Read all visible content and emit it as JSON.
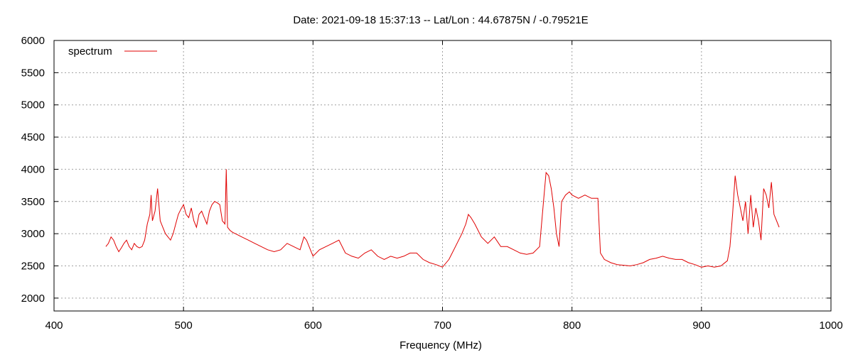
{
  "chart_data": {
    "type": "line",
    "title": "Date: 2021-09-18 15:37:13  --  Lat/Lon : 44.67875N / -0.79521E",
    "xlabel": "Frequency (MHz)",
    "ylabel": "",
    "xlim": [
      400,
      1000
    ],
    "ylim": [
      1800,
      6000
    ],
    "xticks": [
      400,
      500,
      600,
      700,
      800,
      900,
      1000
    ],
    "yticks": [
      2000,
      2500,
      3000,
      3500,
      4000,
      4500,
      5000,
      5500,
      6000
    ],
    "grid": true,
    "legend_position": "top-left",
    "series_color": "#e00000",
    "series": [
      {
        "name": "spectrum",
        "x": [
          440,
          442,
          444,
          446,
          448,
          450,
          452,
          454,
          456,
          458,
          460,
          462,
          464,
          466,
          468,
          470,
          472,
          474,
          475,
          476,
          478,
          480,
          482,
          484,
          486,
          488,
          490,
          492,
          494,
          496,
          498,
          500,
          502,
          504,
          506,
          508,
          510,
          512,
          514,
          516,
          518,
          520,
          522,
          524,
          526,
          528,
          530,
          532,
          533,
          534,
          536,
          538,
          540,
          545,
          550,
          555,
          560,
          565,
          570,
          575,
          580,
          585,
          590,
          593,
          595,
          598,
          600,
          605,
          610,
          615,
          620,
          625,
          630,
          635,
          640,
          645,
          650,
          655,
          660,
          665,
          670,
          675,
          680,
          685,
          690,
          695,
          700,
          705,
          710,
          715,
          718,
          720,
          722,
          725,
          730,
          735,
          740,
          745,
          750,
          755,
          760,
          765,
          770,
          775,
          778,
          780,
          782,
          784,
          786,
          788,
          790,
          792,
          795,
          798,
          800,
          805,
          810,
          815,
          820,
          822,
          825,
          830,
          835,
          840,
          845,
          850,
          855,
          860,
          865,
          870,
          875,
          880,
          885,
          890,
          895,
          900,
          905,
          910,
          915,
          920,
          922,
          924,
          926,
          928,
          930,
          932,
          934,
          936,
          938,
          940,
          942,
          944,
          946,
          948,
          950,
          952,
          954,
          956,
          958,
          960
        ],
        "y": [
          2800,
          2850,
          2950,
          2900,
          2800,
          2720,
          2780,
          2850,
          2900,
          2800,
          2750,
          2850,
          2800,
          2780,
          2800,
          2900,
          3150,
          3300,
          3600,
          3200,
          3350,
          3700,
          3200,
          3100,
          3000,
          2950,
          2900,
          3000,
          3150,
          3300,
          3380,
          3450,
          3300,
          3250,
          3400,
          3200,
          3100,
          3300,
          3350,
          3250,
          3150,
          3350,
          3450,
          3500,
          3480,
          3450,
          3200,
          3150,
          4000,
          3100,
          3050,
          3020,
          3000,
          2950,
          2900,
          2850,
          2800,
          2750,
          2720,
          2750,
          2850,
          2800,
          2750,
          2950,
          2900,
          2750,
          2650,
          2750,
          2800,
          2850,
          2900,
          2700,
          2650,
          2620,
          2700,
          2750,
          2650,
          2600,
          2650,
          2620,
          2650,
          2700,
          2700,
          2600,
          2550,
          2520,
          2480,
          2600,
          2800,
          3000,
          3150,
          3300,
          3250,
          3150,
          2950,
          2850,
          2950,
          2800,
          2800,
          2750,
          2700,
          2680,
          2700,
          2800,
          3500,
          3950,
          3900,
          3700,
          3400,
          3000,
          2800,
          3500,
          3600,
          3650,
          3600,
          3550,
          3600,
          3550,
          3550,
          2700,
          2600,
          2550,
          2520,
          2510,
          2500,
          2520,
          2550,
          2600,
          2620,
          2650,
          2620,
          2600,
          2600,
          2550,
          2520,
          2480,
          2500,
          2480,
          2500,
          2580,
          2800,
          3300,
          3900,
          3600,
          3400,
          3200,
          3500,
          3000,
          3600,
          3100,
          3400,
          3200,
          2900,
          3700,
          3600,
          3400,
          3800,
          3300,
          3200,
          3100
        ]
      }
    ]
  }
}
